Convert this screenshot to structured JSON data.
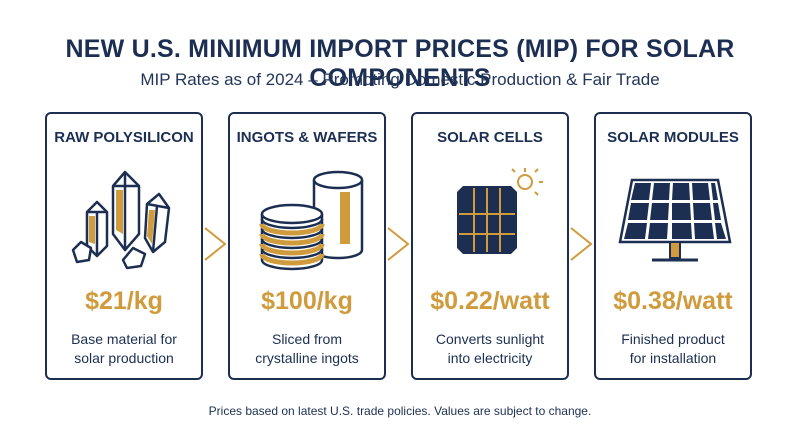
{
  "header": {
    "title": "NEW U.S. MINIMUM IMPORT PRICES (MIP) FOR SOLAR COMPONENTS",
    "subtitle": "MIP Rates as of 2024 – Promoting Domestic Production & Fair Trade"
  },
  "colors": {
    "navy": "#1c2f52",
    "gold": "#cf9b3c"
  },
  "cards": [
    {
      "name": "RAW POLYSILICON",
      "price": "$21/kg",
      "desc_line1": "Base material for",
      "desc_line2": "solar production",
      "icon": "crystal-icon"
    },
    {
      "name": "INGOTS & WAFERS",
      "price": "$100/kg",
      "desc_line1": "Sliced from",
      "desc_line2": "crystalline ingots",
      "icon": "ingot-wafer-icon"
    },
    {
      "name": "SOLAR CELLS",
      "price": "$0.22/watt",
      "desc_line1": "Converts sunlight",
      "desc_line2": "into electricity",
      "icon": "solar-cell-icon"
    },
    {
      "name": "SOLAR MODULES",
      "price": "$0.38/watt",
      "desc_line1": "Finished product",
      "desc_line2": "for installation",
      "icon": "solar-panel-icon"
    }
  ],
  "footer": {
    "note": "Prices based on latest U.S. trade policies. Values are subject to change."
  }
}
